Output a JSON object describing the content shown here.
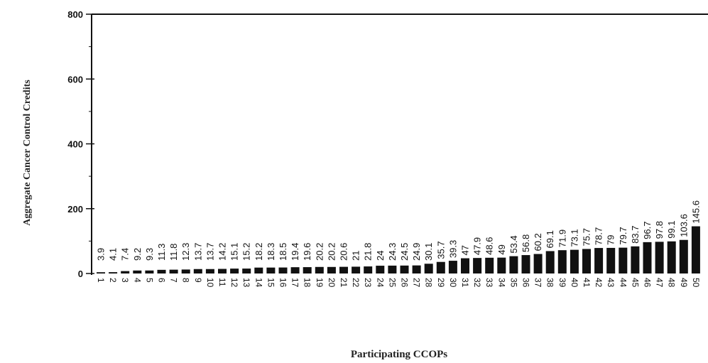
{
  "chart_data": {
    "type": "bar",
    "title": "",
    "xlabel": "Participating CCOPs",
    "ylabel": "Aggregate Cancer Control Credits",
    "ylim": [
      0,
      800
    ],
    "yticks": [
      0,
      200,
      400,
      600,
      800
    ],
    "grid": false,
    "bar_color": "#111111",
    "categories": [
      "1",
      "2",
      "3",
      "4",
      "5",
      "6",
      "7",
      "8",
      "9",
      "10",
      "11",
      "12",
      "13",
      "14",
      "15",
      "16",
      "17",
      "18",
      "19",
      "20",
      "21",
      "22",
      "23",
      "24",
      "25",
      "26",
      "27",
      "28",
      "29",
      "30",
      "31",
      "32",
      "33",
      "34",
      "35",
      "36",
      "37",
      "38",
      "39",
      "40",
      "41",
      "42",
      "43",
      "44",
      "45",
      "46",
      "47",
      "48",
      "49",
      "50"
    ],
    "values": [
      3.9,
      4.1,
      7.4,
      9.2,
      9.3,
      11.3,
      11.8,
      12.3,
      13.7,
      13.7,
      14.2,
      15.1,
      15.2,
      18.2,
      18.3,
      18.5,
      19.4,
      19.6,
      20.2,
      20.2,
      20.6,
      21,
      21.8,
      24,
      24.3,
      24.5,
      24.9,
      30.1,
      35.7,
      39.3,
      47,
      47.9,
      48.6,
      49,
      53.4,
      56.8,
      60.2,
      69.1,
      71.9,
      73.1,
      75.7,
      78.7,
      79,
      79.7,
      83.7,
      96.7,
      97.8,
      99.1,
      103.6,
      145.6
    ],
    "data_labels": [
      "3.9",
      "4.1",
      "7.4",
      "9.2",
      "9.3",
      "11.3",
      "11.8",
      "12.3",
      "13.7",
      "13.7",
      "14.2",
      "15.1",
      "15.2",
      "18.2",
      "18.3",
      "18.5",
      "19.4",
      "19.6",
      "20.2",
      "20.2",
      "20.6",
      "21",
      "21.8",
      "24",
      "24.3",
      "24.5",
      "24.9",
      "30.1",
      "35.7",
      "39.3",
      "47",
      "47.9",
      "48.6",
      "49",
      "53.4",
      "56.8",
      "60.2",
      "69.1",
      "71.9",
      "73.1",
      "75.7",
      "78.7",
      "79",
      "79.7",
      "83.7",
      "96.7",
      "97.8",
      "99.1",
      "103.6",
      "145.6"
    ]
  }
}
